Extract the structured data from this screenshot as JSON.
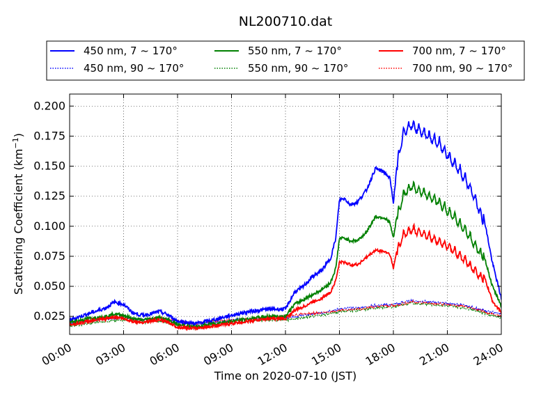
{
  "chart_data": {
    "type": "line",
    "title": "NL200710.dat",
    "xlabel": "Time on 2020-07-10 (JST)",
    "ylabel_main": "Scattering Coefficient (km",
    "ylabel_sup": "−1",
    "ylabel_end": ")",
    "xlim": [
      0,
      24
    ],
    "ylim": [
      0.01,
      0.21
    ],
    "x_ticks": [
      0,
      3,
      6,
      9,
      12,
      15,
      18,
      21,
      24
    ],
    "x_tick_labels": [
      "00:00",
      "03:00",
      "06:00",
      "09:00",
      "12:00",
      "15:00",
      "18:00",
      "21:00",
      "24:00"
    ],
    "y_ticks": [
      0.025,
      0.05,
      0.075,
      0.1,
      0.125,
      0.15,
      0.175,
      0.2
    ],
    "y_tick_labels": [
      "0.025",
      "0.050",
      "0.075",
      "0.100",
      "0.125",
      "0.150",
      "0.175",
      "0.200"
    ],
    "grid": true,
    "legend_position": "top",
    "series": [
      {
        "name": "450 nm, 7 ~ 170°",
        "color": "#0000ff",
        "style": "solid",
        "jitter": 0.0015,
        "points": [
          [
            0,
            0.022
          ],
          [
            1,
            0.027
          ],
          [
            2,
            0.032
          ],
          [
            2.5,
            0.037
          ],
          [
            3,
            0.035
          ],
          [
            3.5,
            0.028
          ],
          [
            4,
            0.026
          ],
          [
            4.5,
            0.027
          ],
          [
            5,
            0.029
          ],
          [
            5.5,
            0.026
          ],
          [
            6,
            0.021
          ],
          [
            7,
            0.019
          ],
          [
            8,
            0.022
          ],
          [
            9,
            0.026
          ],
          [
            10,
            0.029
          ],
          [
            11,
            0.031
          ],
          [
            12,
            0.031
          ],
          [
            12.5,
            0.045
          ],
          [
            13,
            0.05
          ],
          [
            13.5,
            0.058
          ],
          [
            14,
            0.063
          ],
          [
            14.5,
            0.073
          ],
          [
            14.8,
            0.09
          ],
          [
            15,
            0.122
          ],
          [
            15.3,
            0.123
          ],
          [
            15.6,
            0.118
          ],
          [
            16,
            0.12
          ],
          [
            16.5,
            0.13
          ],
          [
            17,
            0.148
          ],
          [
            17.5,
            0.145
          ],
          [
            17.8,
            0.14
          ],
          [
            18,
            0.12
          ],
          [
            18.3,
            0.165
          ],
          [
            18.6,
            0.185
          ],
          [
            19,
            0.19
          ],
          [
            19.5,
            0.185
          ],
          [
            20,
            0.18
          ],
          [
            20.5,
            0.175
          ],
          [
            21,
            0.165
          ],
          [
            21.5,
            0.155
          ],
          [
            22,
            0.145
          ],
          [
            22.5,
            0.13
          ],
          [
            23,
            0.11
          ],
          [
            23.5,
            0.07
          ],
          [
            24,
            0.04
          ]
        ]
      },
      {
        "name": "550 nm, 7 ~ 170°",
        "color": "#008000",
        "style": "solid",
        "jitter": 0.0013,
        "points": [
          [
            0,
            0.02
          ],
          [
            1,
            0.023
          ],
          [
            2,
            0.025
          ],
          [
            2.5,
            0.027
          ],
          [
            3,
            0.026
          ],
          [
            3.5,
            0.023
          ],
          [
            4,
            0.022
          ],
          [
            5,
            0.024
          ],
          [
            5.5,
            0.022
          ],
          [
            6,
            0.018
          ],
          [
            7,
            0.016
          ],
          [
            8,
            0.019
          ],
          [
            9,
            0.021
          ],
          [
            10,
            0.023
          ],
          [
            11,
            0.025
          ],
          [
            12,
            0.025
          ],
          [
            12.5,
            0.035
          ],
          [
            13,
            0.039
          ],
          [
            13.5,
            0.043
          ],
          [
            14,
            0.047
          ],
          [
            14.5,
            0.053
          ],
          [
            14.8,
            0.065
          ],
          [
            15,
            0.09
          ],
          [
            15.3,
            0.09
          ],
          [
            15.6,
            0.088
          ],
          [
            16,
            0.088
          ],
          [
            16.5,
            0.095
          ],
          [
            17,
            0.108
          ],
          [
            17.5,
            0.107
          ],
          [
            17.8,
            0.103
          ],
          [
            18,
            0.09
          ],
          [
            18.3,
            0.118
          ],
          [
            18.6,
            0.132
          ],
          [
            19,
            0.138
          ],
          [
            19.5,
            0.134
          ],
          [
            20,
            0.13
          ],
          [
            20.5,
            0.125
          ],
          [
            21,
            0.118
          ],
          [
            21.5,
            0.11
          ],
          [
            22,
            0.102
          ],
          [
            22.5,
            0.09
          ],
          [
            23,
            0.078
          ],
          [
            23.5,
            0.05
          ],
          [
            24,
            0.034
          ]
        ]
      },
      {
        "name": "700 nm, 7 ~ 170°",
        "color": "#ff0000",
        "style": "solid",
        "jitter": 0.0012,
        "points": [
          [
            0,
            0.018
          ],
          [
            1,
            0.021
          ],
          [
            2,
            0.023
          ],
          [
            2.5,
            0.025
          ],
          [
            3,
            0.023
          ],
          [
            3.5,
            0.021
          ],
          [
            4,
            0.02
          ],
          [
            5,
            0.022
          ],
          [
            5.5,
            0.02
          ],
          [
            6,
            0.016
          ],
          [
            7,
            0.015
          ],
          [
            8,
            0.017
          ],
          [
            9,
            0.019
          ],
          [
            10,
            0.021
          ],
          [
            11,
            0.023
          ],
          [
            12,
            0.023
          ],
          [
            12.5,
            0.03
          ],
          [
            13,
            0.033
          ],
          [
            13.5,
            0.037
          ],
          [
            14,
            0.04
          ],
          [
            14.5,
            0.045
          ],
          [
            14.8,
            0.055
          ],
          [
            15,
            0.07
          ],
          [
            15.3,
            0.07
          ],
          [
            15.6,
            0.068
          ],
          [
            16,
            0.068
          ],
          [
            16.5,
            0.074
          ],
          [
            17,
            0.08
          ],
          [
            17.5,
            0.079
          ],
          [
            17.8,
            0.077
          ],
          [
            18,
            0.065
          ],
          [
            18.3,
            0.088
          ],
          [
            18.6,
            0.098
          ],
          [
            19,
            0.102
          ],
          [
            19.5,
            0.099
          ],
          [
            20,
            0.096
          ],
          [
            20.5,
            0.092
          ],
          [
            21,
            0.088
          ],
          [
            21.5,
            0.082
          ],
          [
            22,
            0.076
          ],
          [
            22.5,
            0.068
          ],
          [
            23,
            0.06
          ],
          [
            23.5,
            0.038
          ],
          [
            24,
            0.028
          ]
        ]
      },
      {
        "name": "450 nm, 90 ~ 170°",
        "color": "#0000ff",
        "style": "dotted",
        "jitter": 0.0009,
        "points": [
          [
            0,
            0.019
          ],
          [
            1,
            0.021
          ],
          [
            2,
            0.023
          ],
          [
            3,
            0.024
          ],
          [
            4,
            0.022
          ],
          [
            5,
            0.023
          ],
          [
            6,
            0.02
          ],
          [
            7,
            0.018
          ],
          [
            8,
            0.02
          ],
          [
            9,
            0.022
          ],
          [
            10,
            0.023
          ],
          [
            11,
            0.024
          ],
          [
            12,
            0.024
          ],
          [
            13,
            0.026
          ],
          [
            14,
            0.028
          ],
          [
            15,
            0.031
          ],
          [
            16,
            0.032
          ],
          [
            17,
            0.034
          ],
          [
            18,
            0.035
          ],
          [
            19,
            0.038
          ],
          [
            20,
            0.037
          ],
          [
            21,
            0.036
          ],
          [
            22,
            0.034
          ],
          [
            23,
            0.03
          ],
          [
            24,
            0.027
          ]
        ]
      },
      {
        "name": "550 nm, 90 ~ 170°",
        "color": "#008000",
        "style": "dotted",
        "jitter": 0.0009,
        "points": [
          [
            0,
            0.017
          ],
          [
            1,
            0.019
          ],
          [
            2,
            0.021
          ],
          [
            3,
            0.022
          ],
          [
            4,
            0.02
          ],
          [
            5,
            0.021
          ],
          [
            6,
            0.018
          ],
          [
            7,
            0.016
          ],
          [
            8,
            0.018
          ],
          [
            9,
            0.02
          ],
          [
            10,
            0.021
          ],
          [
            11,
            0.022
          ],
          [
            12,
            0.022
          ],
          [
            13,
            0.024
          ],
          [
            14,
            0.026
          ],
          [
            15,
            0.029
          ],
          [
            16,
            0.03
          ],
          [
            17,
            0.032
          ],
          [
            18,
            0.033
          ],
          [
            19,
            0.036
          ],
          [
            20,
            0.035
          ],
          [
            21,
            0.034
          ],
          [
            22,
            0.032
          ],
          [
            23,
            0.028
          ],
          [
            24,
            0.024
          ]
        ]
      },
      {
        "name": "700 nm, 90 ~ 170°",
        "color": "#ff0000",
        "style": "dotted",
        "jitter": 0.0009,
        "points": [
          [
            0,
            0.018
          ],
          [
            1,
            0.02
          ],
          [
            2,
            0.023
          ],
          [
            3,
            0.024
          ],
          [
            4,
            0.022
          ],
          [
            5,
            0.024
          ],
          [
            6,
            0.021
          ],
          [
            7,
            0.019
          ],
          [
            8,
            0.021
          ],
          [
            9,
            0.022
          ],
          [
            10,
            0.023
          ],
          [
            11,
            0.024
          ],
          [
            12,
            0.025
          ],
          [
            13,
            0.027
          ],
          [
            14,
            0.028
          ],
          [
            15,
            0.03
          ],
          [
            16,
            0.031
          ],
          [
            17,
            0.033
          ],
          [
            18,
            0.034
          ],
          [
            19,
            0.037
          ],
          [
            20,
            0.036
          ],
          [
            21,
            0.035
          ],
          [
            22,
            0.033
          ],
          [
            23,
            0.029
          ],
          [
            24,
            0.025
          ]
        ]
      }
    ]
  }
}
